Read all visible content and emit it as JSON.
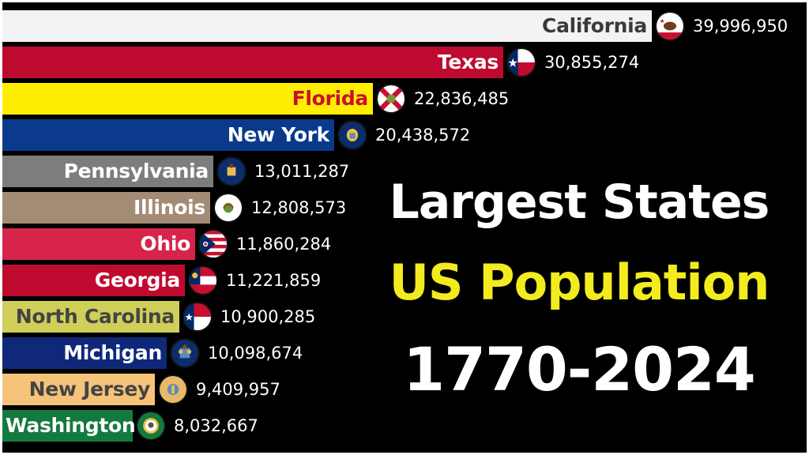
{
  "title": {
    "line1": "Largest States",
    "line2": "US Population",
    "line3": "1770-2024"
  },
  "chart_data": {
    "type": "bar",
    "orientation": "horizontal",
    "categories": [
      "California",
      "Texas",
      "Florida",
      "New York",
      "Pennsylvania",
      "Illinois",
      "Ohio",
      "Georgia",
      "North Carolina",
      "Michigan",
      "New Jersey",
      "Washington"
    ],
    "values": [
      39996950,
      30855274,
      22836485,
      20438572,
      13011287,
      12808573,
      11860284,
      11221859,
      10900285,
      10098674,
      9409957,
      8032667
    ],
    "value_labels": [
      "39,996,950",
      "30,855,274",
      "22,836,485",
      "20,438,572",
      "13,011,287",
      "12,808,573",
      "11,860,284",
      "11,221,859",
      "10,900,285",
      "10,098,674",
      "9,409,957",
      "8,032,667"
    ],
    "bar_colors": [
      "#f3f3f3",
      "#bf0a30",
      "#ffee00",
      "#0b3a8c",
      "#7d7d7d",
      "#a48b76",
      "#d8244a",
      "#bf0a30",
      "#cfcf5a",
      "#10287a",
      "#f5c47a",
      "#137a3e"
    ],
    "label_colors": [
      "#3a3a3a",
      "#ffffff",
      "#c8102e",
      "#ffffff",
      "#ffffff",
      "#ffffff",
      "#ffffff",
      "#ffffff",
      "#444444",
      "#ffffff",
      "#444444",
      "#ffffff"
    ],
    "flag_icons": [
      "california-flag-icon",
      "texas-flag-icon",
      "florida-flag-icon",
      "new-york-flag-icon",
      "pennsylvania-flag-icon",
      "illinois-flag-icon",
      "ohio-flag-icon",
      "georgia-flag-icon",
      "north-carolina-flag-icon",
      "michigan-flag-icon",
      "new-jersey-flag-icon",
      "washington-flag-icon"
    ]
  }
}
